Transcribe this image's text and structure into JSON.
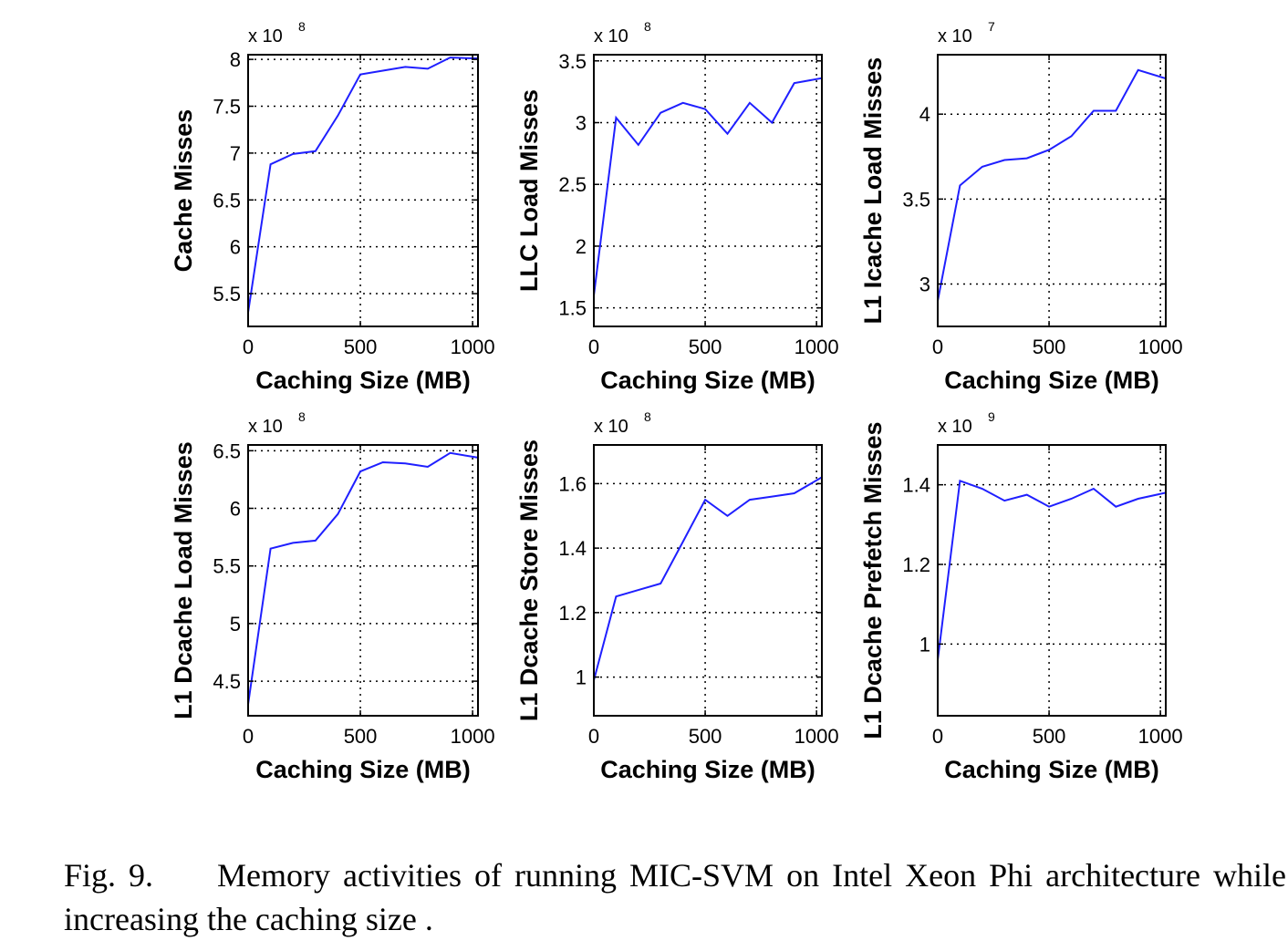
{
  "caption": {
    "figure_number": "Fig. 9.",
    "text": "Memory activities of running MIC-SVM on Intel Xeon Phi architecture while increasing the caching size ."
  },
  "colors": {
    "line": "#1f1fff",
    "axis": "#000000",
    "grid": "#000000"
  },
  "chart_data": [
    {
      "type": "line",
      "xlabel": "Caching Size (MB)",
      "ylabel": "Cache Misses",
      "multiplier_base": "x 10",
      "multiplier_exponent": "8",
      "xlim": [
        0,
        1024
      ],
      "ylim": [
        5.15,
        8.05
      ],
      "xticks": [
        0,
        500,
        1000
      ],
      "xtick_labels": [
        "0",
        "500",
        "1000"
      ],
      "yticks": [
        5.5,
        6,
        6.5,
        7,
        7.5,
        8
      ],
      "ytick_labels": [
        "5.5",
        "6",
        "6.5",
        "7",
        "7.5",
        "8"
      ],
      "grid": true,
      "x": [
        0,
        100,
        200,
        300,
        400,
        500,
        600,
        700,
        800,
        900,
        1024
      ],
      "y": [
        5.3,
        6.88,
        6.99,
        7.02,
        7.4,
        7.84,
        7.88,
        7.92,
        7.9,
        8.02,
        8.01
      ]
    },
    {
      "type": "line",
      "xlabel": "Caching Size (MB)",
      "ylabel": "LLC Load Misses",
      "multiplier_base": "x 10",
      "multiplier_exponent": "8",
      "xlim": [
        0,
        1024
      ],
      "ylim": [
        1.35,
        3.55
      ],
      "xticks": [
        0,
        500,
        1000
      ],
      "xtick_labels": [
        "0",
        "500",
        "1000"
      ],
      "yticks": [
        1.5,
        2,
        2.5,
        3,
        3.5
      ],
      "ytick_labels": [
        "1.5",
        "2",
        "2.5",
        "3",
        "3.5"
      ],
      "grid": true,
      "x": [
        0,
        100,
        200,
        300,
        400,
        500,
        600,
        700,
        800,
        900,
        1024
      ],
      "y": [
        1.6,
        3.04,
        2.82,
        3.08,
        3.16,
        3.11,
        2.91,
        3.16,
        3.0,
        3.32,
        3.36
      ]
    },
    {
      "type": "line",
      "xlabel": "Caching Size (MB)",
      "ylabel": "L1 Icache Load Misses",
      "multiplier_base": "x 10",
      "multiplier_exponent": "7",
      "xlim": [
        0,
        1024
      ],
      "ylim": [
        2.75,
        4.35
      ],
      "xticks": [
        0,
        500,
        1000
      ],
      "xtick_labels": [
        "0",
        "500",
        "1000"
      ],
      "yticks": [
        3,
        3.5,
        4
      ],
      "ytick_labels": [
        "3",
        "3.5",
        "4"
      ],
      "grid": true,
      "x": [
        0,
        100,
        200,
        300,
        400,
        500,
        600,
        700,
        800,
        900,
        1024
      ],
      "y": [
        2.9,
        3.58,
        3.69,
        3.73,
        3.74,
        3.79,
        3.87,
        4.02,
        4.02,
        4.26,
        4.21
      ]
    },
    {
      "type": "line",
      "xlabel": "Caching Size (MB)",
      "ylabel": "L1 Dcache Load Misses",
      "multiplier_base": "x 10",
      "multiplier_exponent": "8",
      "xlim": [
        0,
        1024
      ],
      "ylim": [
        4.2,
        6.55
      ],
      "xticks": [
        0,
        500,
        1000
      ],
      "xtick_labels": [
        "0",
        "500",
        "1000"
      ],
      "yticks": [
        4.5,
        5,
        5.5,
        6,
        6.5
      ],
      "ytick_labels": [
        "4.5",
        "5",
        "5.5",
        "6",
        "6.5"
      ],
      "grid": true,
      "x": [
        0,
        100,
        200,
        300,
        400,
        500,
        600,
        700,
        800,
        900,
        1024
      ],
      "y": [
        4.3,
        5.65,
        5.7,
        5.72,
        5.95,
        6.32,
        6.4,
        6.39,
        6.36,
        6.48,
        6.44
      ]
    },
    {
      "type": "line",
      "xlabel": "Caching Size (MB)",
      "ylabel": "L1 Dcache Store Misses",
      "multiplier_base": "x 10",
      "multiplier_exponent": "8",
      "xlim": [
        0,
        1024
      ],
      "ylim": [
        0.88,
        1.72
      ],
      "xticks": [
        0,
        500,
        1000
      ],
      "xtick_labels": [
        "0",
        "500",
        "1000"
      ],
      "yticks": [
        1,
        1.2,
        1.4,
        1.6
      ],
      "ytick_labels": [
        "1",
        "1.2",
        "1.4",
        "1.6"
      ],
      "grid": true,
      "x": [
        0,
        100,
        200,
        300,
        400,
        500,
        600,
        700,
        800,
        900,
        1024
      ],
      "y": [
        0.99,
        1.25,
        1.27,
        1.29,
        1.42,
        1.55,
        1.5,
        1.55,
        1.56,
        1.57,
        1.62
      ]
    },
    {
      "type": "line",
      "xlabel": "Caching Size (MB)",
      "ylabel": "L1 Dcache Prefetch Misses",
      "multiplier_base": "x 10",
      "multiplier_exponent": "9",
      "xlim": [
        0,
        1024
      ],
      "ylim": [
        0.82,
        1.5
      ],
      "xticks": [
        0,
        500,
        1000
      ],
      "xtick_labels": [
        "0",
        "500",
        "1000"
      ],
      "yticks": [
        1,
        1.2,
        1.4
      ],
      "ytick_labels": [
        "1",
        "1.2",
        "1.4"
      ],
      "grid": true,
      "x": [
        0,
        100,
        200,
        300,
        400,
        500,
        600,
        700,
        800,
        900,
        1024
      ],
      "y": [
        0.96,
        1.41,
        1.39,
        1.36,
        1.375,
        1.345,
        1.365,
        1.39,
        1.345,
        1.365,
        1.38
      ]
    }
  ]
}
